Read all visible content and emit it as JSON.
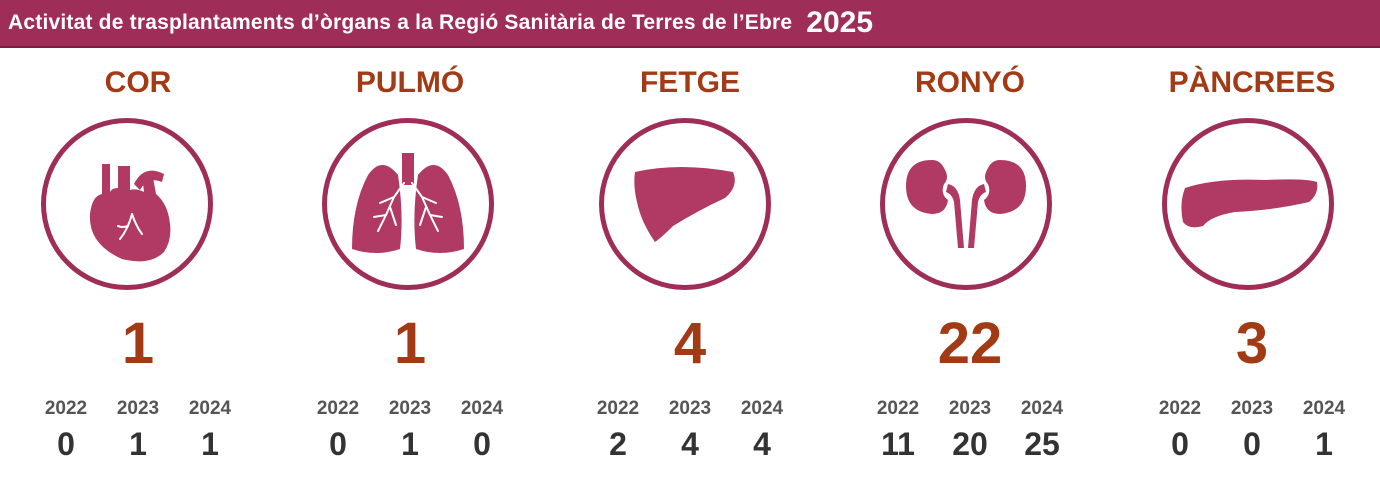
{
  "header": {
    "title": "Activitat de trasplantaments d’òrgans a la Regió Sanitària de Terres de l’Ebre",
    "year": "2025"
  },
  "colors": {
    "header_bg": "#9e2e57",
    "organ_icon": "#b03a64",
    "accent_text": "#a23a15",
    "history_text": "#333333"
  },
  "history_years": [
    "2022",
    "2023",
    "2024"
  ],
  "organs": [
    {
      "name": "COR",
      "icon": "heart-icon",
      "total": "1",
      "history": [
        "0",
        "1",
        "1"
      ]
    },
    {
      "name": "PULMÓ",
      "icon": "lungs-icon",
      "total": "1",
      "history": [
        "0",
        "1",
        "0"
      ]
    },
    {
      "name": "FETGE",
      "icon": "liver-icon",
      "total": "4",
      "history": [
        "2",
        "4",
        "4"
      ]
    },
    {
      "name": "RONYÓ",
      "icon": "kidneys-icon",
      "total": "22",
      "history": [
        "11",
        "20",
        "25"
      ]
    },
    {
      "name": "PÀNCREES",
      "icon": "pancreas-icon",
      "total": "3",
      "history": [
        "0",
        "0",
        "1"
      ]
    }
  ]
}
